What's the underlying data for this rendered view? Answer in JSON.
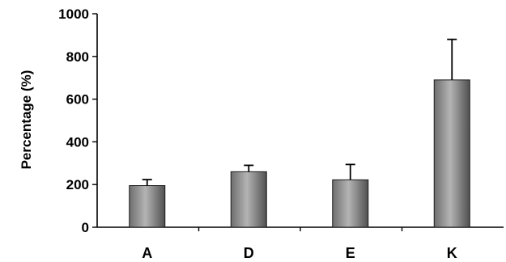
{
  "chart_data": {
    "type": "bar",
    "title": "",
    "xlabel": "",
    "ylabel": "Percentage (%)",
    "ylim": [
      0,
      1000
    ],
    "yticks": [
      0,
      200,
      400,
      600,
      800,
      1000
    ],
    "grid": false,
    "categories": [
      "A",
      "D",
      "E",
      "K"
    ],
    "values": [
      195,
      260,
      222,
      690
    ],
    "errors": [
      28,
      30,
      72,
      190
    ],
    "bar_color": "#8c8c8c"
  }
}
